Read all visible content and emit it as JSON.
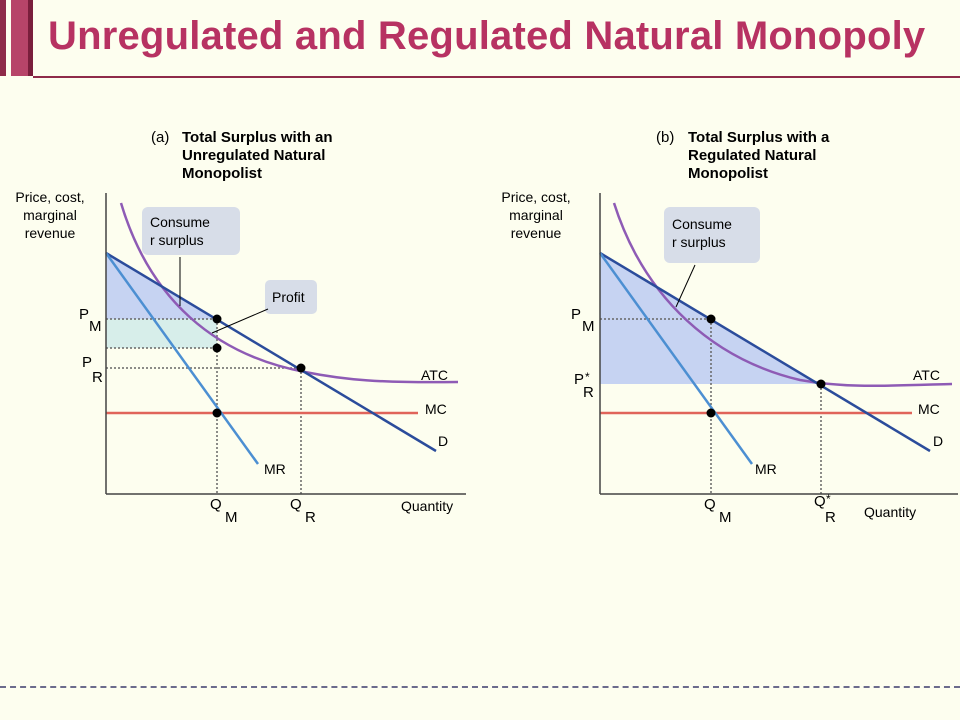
{
  "title": "Unregulated and Regulated Natural Monopoly",
  "panel_a": {
    "tag": "(a)",
    "heading": [
      "Total Surplus with an",
      "Unregulated Natural",
      "Monopolist"
    ],
    "y_axis_label": [
      "Price, cost,",
      "marginal",
      "revenue"
    ],
    "x_axis_label": "Quantity",
    "callout_consumer": [
      "Consume",
      "r surplus"
    ],
    "callout_profit": "Profit",
    "p_m": {
      "main": "P",
      "sub": "M"
    },
    "p_r": {
      "main": "P",
      "sub": "R"
    },
    "q_m": {
      "main": "Q",
      "sub": "M"
    },
    "q_r": {
      "main": "Q",
      "sub": "R"
    },
    "curve_atc": "ATC",
    "curve_mc": "MC",
    "curve_d": "D",
    "curve_mr": "MR"
  },
  "panel_b": {
    "tag": "(b)",
    "heading": [
      "Total Surplus with a",
      "Regulated Natural",
      "Monopolist"
    ],
    "y_axis_label": [
      "Price, cost,",
      "marginal",
      "revenue"
    ],
    "x_axis_label": "Quantity",
    "callout_consumer": [
      "Consume",
      "r surplus"
    ],
    "p_m": {
      "main": "P",
      "sub": "M"
    },
    "p_r": {
      "main": "P",
      "star": "*",
      "sub": "R"
    },
    "q_m": {
      "main": "Q",
      "sub": "M"
    },
    "q_r": {
      "main": "Q",
      "star": "*",
      "sub": "R"
    },
    "curve_atc": "ATC",
    "curve_mc": "MC",
    "curve_d": "D",
    "curve_mr": "MR"
  },
  "colors": {
    "title": "#B73262",
    "background": "#FDFEEF",
    "demand": "#2B4C9B",
    "mr": "#4C8FD2",
    "atc": "#8E5BB5",
    "mc": "#E0645A",
    "consumer_surplus_fill": "#C6D3F2",
    "profit_fill": "#D7EEEA",
    "callout_fill": "#D7DDE8"
  }
}
